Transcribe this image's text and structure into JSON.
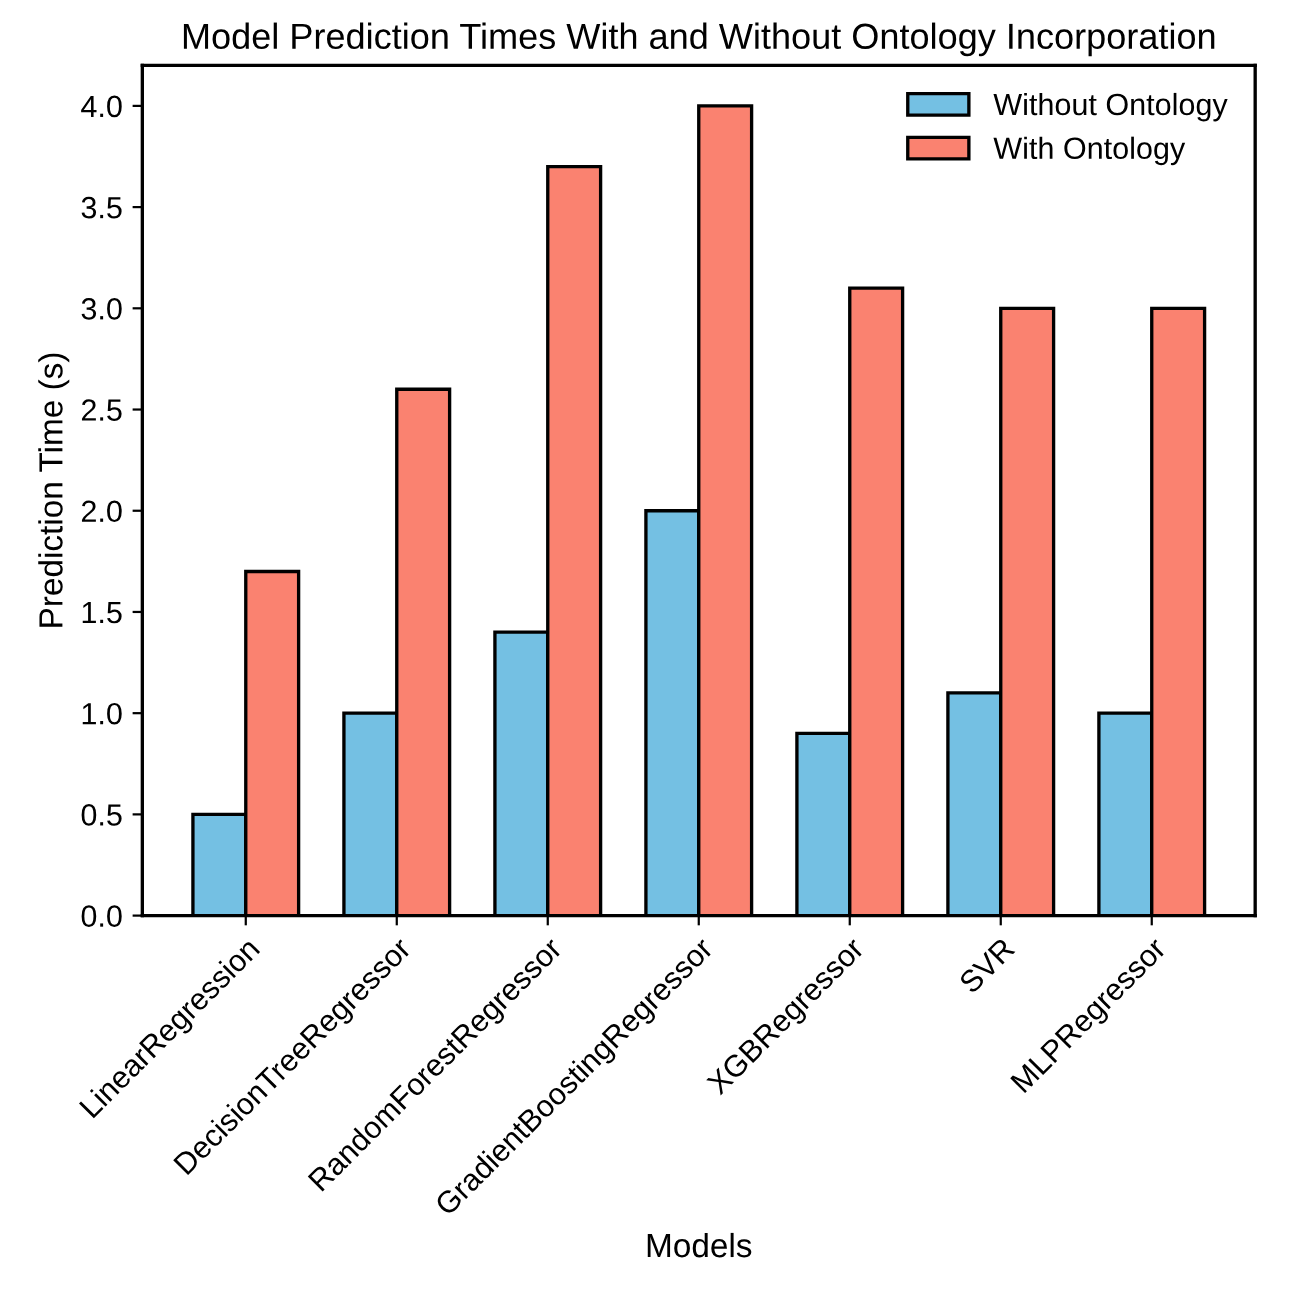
{
  "chart_data": {
    "type": "bar",
    "title": "Model Prediction Times With and Without Ontology Incorporation",
    "xlabel": "Models",
    "ylabel": "Prediction Time (s)",
    "categories": [
      "LinearRegression",
      "DecisionTreeRegressor",
      "RandomForestRegressor",
      "GradientBoostingRegressor",
      "XGBRegressor",
      "SVR",
      "MLPRegressor"
    ],
    "series": [
      {
        "name": "Without Ontology",
        "color": "#74c0e3",
        "values": [
          0.5,
          1.0,
          1.4,
          2.0,
          0.9,
          1.1,
          1.0
        ]
      },
      {
        "name": "With Ontology",
        "color": "#fa8270",
        "values": [
          1.7,
          2.6,
          3.7,
          4.0,
          3.1,
          3.0,
          3.0
        ]
      }
    ],
    "ylim": [
      0,
      4.2
    ],
    "yticks": [
      {
        "value": 0,
        "label": "0.0"
      },
      0.5,
      {
        "value": 1,
        "label": "1.0"
      },
      1.5,
      {
        "value": 2,
        "label": "2.0"
      },
      2.5,
      {
        "value": 3,
        "label": "3.0"
      },
      3.5,
      {
        "value": 4,
        "label": "4.0"
      }
    ],
    "grid": false,
    "legend": "top right"
  }
}
